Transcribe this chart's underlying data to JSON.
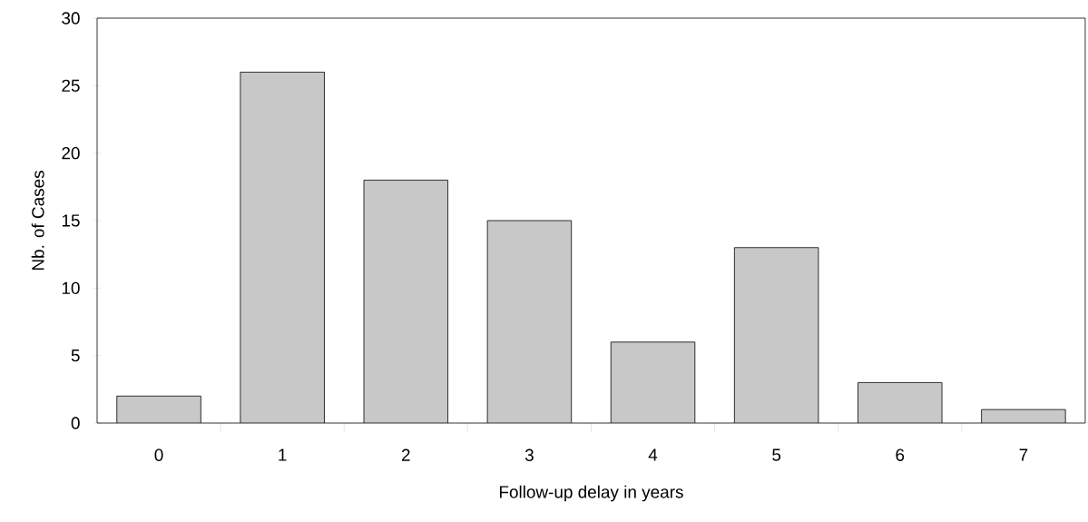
{
  "chart_data": {
    "type": "bar",
    "categories": [
      "0",
      "1",
      "2",
      "3",
      "4",
      "5",
      "6",
      "7"
    ],
    "values": [
      2,
      26,
      18,
      15,
      6,
      13,
      3,
      1
    ],
    "color": "#c8c8c8",
    "xlabel": "Follow-up delay in years",
    "ylabel": "Nb. of Cases",
    "ylim": [
      0,
      30
    ],
    "yticks": [
      0,
      5,
      10,
      15,
      20,
      25,
      30
    ]
  }
}
